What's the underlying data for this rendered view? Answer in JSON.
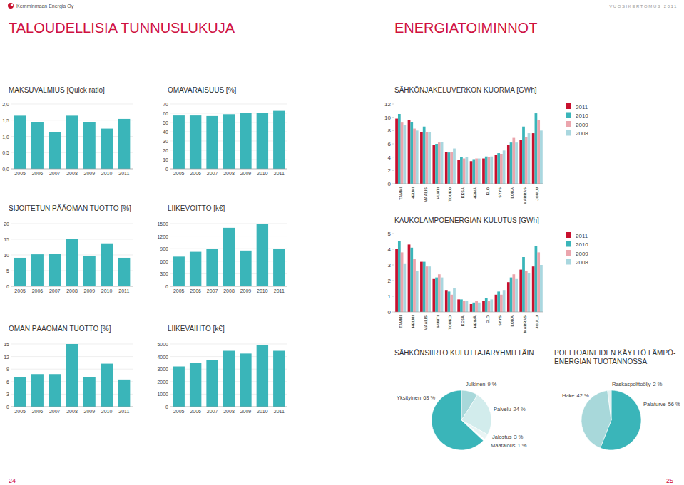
{
  "page": {
    "company": "Kemminmaan Energia Oy",
    "report": "VUOSIKERTOMUS 2011",
    "section_left": "TALOUDELLISIA TUNNUSLUKUJA",
    "section_right": "ENERGIATOIMINNOT",
    "page_left": 24,
    "page_right": 25
  },
  "chart_data": [
    {
      "type": "bar",
      "title": "MAKSUVALMIUS [Quick ratio]",
      "categories": [
        "2005",
        "2006",
        "2007",
        "2008",
        "2009",
        "2010",
        "2011"
      ],
      "values": [
        1.64,
        1.43,
        1.14,
        1.64,
        1.43,
        1.24,
        1.54
      ],
      "color": "#3ab5b9",
      "ylim": [
        0,
        2
      ],
      "yticks": [
        {
          "value": 0,
          "label": "0,0"
        },
        {
          "value": 0.5,
          "label": "0,5"
        },
        {
          "value": 1,
          "label": "1,0"
        },
        {
          "value": 1.5,
          "label": "1,5"
        },
        {
          "value": 2,
          "label": "2,0"
        }
      ],
      "grid": true
    },
    {
      "type": "bar",
      "title": "OMAVARAISUUS [%]",
      "categories": [
        "2005",
        "2006",
        "2007",
        "2008",
        "2009",
        "2010",
        "2011"
      ],
      "values": [
        57.6,
        57.6,
        57,
        59,
        60,
        60.5,
        62.6
      ],
      "color": "#3ab5b9",
      "ylim": [
        0,
        70
      ],
      "yticks": [
        0,
        10,
        20,
        30,
        40,
        50,
        60,
        70
      ],
      "grid": true
    },
    {
      "type": "bar",
      "title": "SIJOITETUN PÄÄOMAN TUOTTO [%]",
      "categories": [
        "2005",
        "2006",
        "2007",
        "2008",
        "2009",
        "2010",
        "2011"
      ],
      "values": [
        9.1,
        10.2,
        10.4,
        15.2,
        9.6,
        13.7,
        9.1
      ],
      "color": "#3ab5b9",
      "ylim": [
        0,
        20
      ],
      "yticks": [
        0,
        5,
        10,
        15,
        20
      ],
      "grid": true
    },
    {
      "type": "bar",
      "title": "LIIKEVOITTO [k€]",
      "categories": [
        "2005",
        "2006",
        "2007",
        "2008",
        "2009",
        "2010",
        "2011"
      ],
      "values": [
        710,
        825,
        890,
        1400,
        855,
        1485,
        890
      ],
      "color": "#3ab5b9",
      "ylim": [
        0,
        1500
      ],
      "yticks": [
        0,
        300,
        600,
        900,
        1200,
        1500
      ],
      "grid": true
    },
    {
      "type": "bar",
      "title": "OMAN PÄÄOMAN TUOTTO [%]",
      "categories": [
        "2005",
        "2006",
        "2007",
        "2008",
        "2009",
        "2010",
        "2011"
      ],
      "values": [
        7,
        7.8,
        7.8,
        15,
        7,
        10.3,
        6.5
      ],
      "color": "#3ab5b9",
      "ylim": [
        0,
        15
      ],
      "yticks": [
        0,
        3,
        6,
        9,
        12,
        15
      ],
      "grid": true
    },
    {
      "type": "bar",
      "title": "LIIKEVAIHTO [k€]",
      "categories": [
        "2005",
        "2006",
        "2007",
        "2008",
        "2009",
        "2010",
        "2011"
      ],
      "values": [
        3210,
        3480,
        3700,
        4460,
        4240,
        4890,
        4460
      ],
      "color": "#3ab5b9",
      "ylim": [
        0,
        5000
      ],
      "yticks": [
        0,
        1000,
        2000,
        3000,
        4000,
        5000
      ],
      "grid": true
    },
    {
      "type": "bar",
      "title": "SÄHKÖNJAKELUVERKON KUORMA [GWh]",
      "categories": [
        "TAMMI",
        "HELMI",
        "MAALIS",
        "HUHTI",
        "TOUKO",
        "KESÄ",
        "HEINÄ",
        "ELO",
        "SYYS",
        "LOKA",
        "MARRAS",
        "JOULU"
      ],
      "series": [
        {
          "name": "2011",
          "color": "#c8102e",
          "values": [
            9.8,
            9.6,
            7.8,
            5.8,
            4.8,
            3.6,
            3.4,
            3.8,
            4.3,
            5.8,
            6.6,
            7.6
          ]
        },
        {
          "name": "2010",
          "color": "#3ab5b9",
          "values": [
            10.5,
            9.3,
            8.6,
            6.0,
            4.7,
            4.0,
            3.7,
            4.1,
            4.6,
            6.2,
            8.6,
            10.6
          ]
        },
        {
          "name": "2009",
          "color": "#eba5ad",
          "values": [
            9.2,
            8.3,
            7.8,
            6.2,
            4.8,
            3.8,
            3.8,
            4.0,
            4.5,
            6.9,
            7.0,
            9.6
          ]
        },
        {
          "name": "2008",
          "color": "#a9d7df",
          "values": [
            8.8,
            8.0,
            7.8,
            6.3,
            5.3,
            4.0,
            3.8,
            4.1,
            5.0,
            6.2,
            7.6,
            8.0
          ]
        }
      ],
      "ylim": [
        0,
        12
      ],
      "yticks": [
        0,
        2,
        4,
        6,
        8,
        10,
        12
      ],
      "grid": false,
      "legend": "right"
    },
    {
      "type": "bar",
      "title": "KAUKOLÄMPÖENERGIAN KULUTUS [GWh]",
      "categories": [
        "TAMMI",
        "HELMI",
        "MAALIS",
        "HUHTI",
        "TOUKO",
        "KESÄ",
        "HEINÄ",
        "ELO",
        "SYYS",
        "LOKA",
        "MARRAS",
        "JOULU"
      ],
      "series": [
        {
          "name": "2011",
          "color": "#c8102e",
          "values": [
            4.0,
            4.3,
            3.2,
            2.1,
            1.4,
            0.8,
            0.5,
            0.7,
            1.1,
            1.9,
            2.7,
            2.9
          ]
        },
        {
          "name": "2010",
          "color": "#3ab5b9",
          "values": [
            4.5,
            4.1,
            3.2,
            2.2,
            1.3,
            0.8,
            0.6,
            0.9,
            1.3,
            2.2,
            3.5,
            4.2
          ]
        },
        {
          "name": "2009",
          "color": "#eba5ad",
          "values": [
            3.8,
            3.4,
            2.9,
            2.4,
            1.1,
            0.7,
            0.7,
            0.7,
            1.1,
            2.4,
            2.6,
            3.8
          ]
        },
        {
          "name": "2008",
          "color": "#a9d7df",
          "values": [
            3.1,
            2.6,
            2.9,
            2.2,
            1.5,
            0.7,
            0.6,
            0.8,
            1.4,
            2.1,
            2.5,
            3.0
          ]
        }
      ],
      "ylim": [
        0,
        5
      ],
      "yticks": [
        0,
        1,
        2,
        3,
        4,
        5
      ],
      "grid": false,
      "legend": "right"
    },
    {
      "type": "pie",
      "title": "SÄHKÖNSIIRTO KULUTTAJARYHMITTÄIN",
      "categories": [
        "Julkinen",
        "Palvelu",
        "Jalostus",
        "Maatalous",
        "Yksityinen"
      ],
      "values": [
        9,
        24,
        3,
        1,
        63
      ],
      "value_labels": [
        "9 %",
        "24 %",
        "3 %",
        "1 %",
        "63 %"
      ],
      "colors": [
        "#a8d8da",
        "#d2ecec",
        "#e8f4f4",
        "#ffffff",
        "#3ab5b9"
      ],
      "data_labels": true
    },
    {
      "type": "pie",
      "title": "POLTTOAINEIDEN KÄYTTÖ LÄMPÖ-\nENERGIAN TUOTANNOSSA",
      "categories": [
        "Palaturve",
        "Hake",
        "Raskaspolttoöljy"
      ],
      "values": [
        56,
        42,
        2
      ],
      "value_labels": [
        "56 %",
        "42 %",
        "2 %"
      ],
      "colors": [
        "#3ab5b9",
        "#a8d8da",
        "#e4f2f2"
      ],
      "data_labels": true
    }
  ]
}
